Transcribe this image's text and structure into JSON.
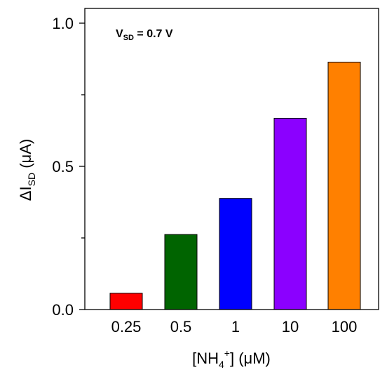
{
  "chart_data": {
    "type": "bar",
    "categories": [
      "0.25",
      "0.5",
      "1",
      "10",
      "100"
    ],
    "values": [
      0.057,
      0.262,
      0.388,
      0.668,
      0.864
    ],
    "colors": [
      "#ff0000",
      "#006400",
      "#0000ff",
      "#8b00ff",
      "#ff8000"
    ],
    "ylim": [
      0,
      1.0
    ],
    "yticks_major": [
      0.0,
      0.5,
      1.0
    ],
    "ytick_labels": [
      "0.0",
      "0.5",
      "1.0"
    ],
    "yticks_minor": [
      0.25,
      0.75
    ],
    "xlabel": {
      "base": "[NH",
      "sub": "4",
      "sup": "+",
      "rest": "] (μM)"
    },
    "ylabel": {
      "base": "ΔI",
      "sub": "SD",
      "rest": " (μA)"
    },
    "annotation": {
      "base": "V",
      "sub": "SD",
      "rest": " = 0.7 V"
    },
    "grid": false,
    "legend": "none"
  }
}
